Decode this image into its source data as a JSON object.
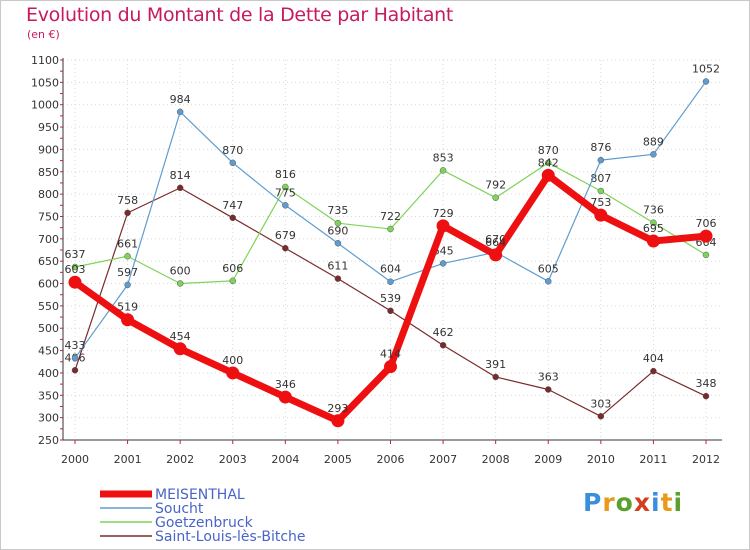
{
  "title": "Evolution du Montant de la Dette par Habitant",
  "unit": "(en €)",
  "brand": {
    "letters": [
      "P",
      "r",
      "o",
      "x",
      "i",
      "t",
      "i"
    ],
    "colors": [
      "#3a8fd9",
      "#e89b1a",
      "#5aa02c",
      "#d23f1d",
      "#3a8fd9",
      "#e89b1a",
      "#5aa02c"
    ]
  },
  "chart_data": {
    "type": "line",
    "title": "Evolution du Montant de la Dette par Habitant",
    "ylabel": "(en €)",
    "xlabel": "",
    "x": [
      "2000",
      "2001",
      "2002",
      "2003",
      "2004",
      "2005",
      "2006",
      "2007",
      "2008",
      "2009",
      "2010",
      "2011",
      "2012"
    ],
    "ylim": [
      250,
      1100
    ],
    "yticks": [
      250,
      300,
      350,
      400,
      450,
      500,
      550,
      600,
      650,
      700,
      750,
      800,
      850,
      900,
      950,
      1000,
      1050,
      1100
    ],
    "grid": "dotted",
    "legend_position": "bottom-left",
    "series": [
      {
        "name": "Saint-Louis-lès-Bitche",
        "color": "#7a2a2a",
        "values": [
          406,
          758,
          814,
          747,
          679,
          611,
          539,
          462,
          391,
          363,
          303,
          404,
          348
        ]
      },
      {
        "name": "Goetzenbruck",
        "color": "#7fd35a",
        "values": [
          637,
          661,
          600,
          606,
          816,
          735,
          722,
          853,
          792,
          870,
          807,
          736,
          664
        ]
      },
      {
        "name": "Soucht",
        "color": "#5f9dd0",
        "values": [
          433,
          597,
          984,
          870,
          775,
          690,
          604,
          645,
          670,
          605,
          876,
          889,
          1052
        ]
      },
      {
        "name": "MEISENTHAL",
        "color": "#ee1010",
        "values": [
          603,
          519,
          454,
          400,
          346,
          293,
          414,
          729,
          664,
          842,
          753,
          695,
          706
        ]
      }
    ],
    "legend_order": [
      "MEISENTHAL",
      "Soucht",
      "Goetzenbruck",
      "Saint-Louis-lès-Bitche"
    ]
  }
}
